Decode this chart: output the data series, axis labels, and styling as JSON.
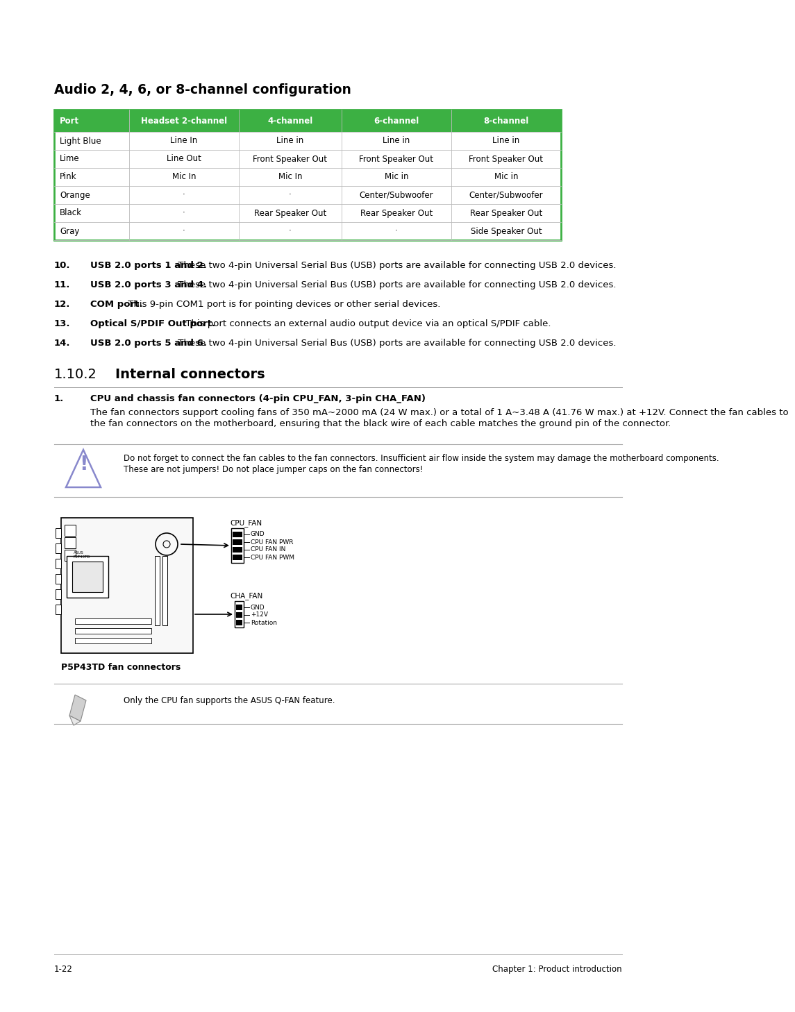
{
  "title": "Audio 2, 4, 6, or 8-channel configuration",
  "table_header_bg": "#3cb043",
  "table_border_color": "#3cb043",
  "table_headers": [
    "Port",
    "Headset 2-channel",
    "4-channel",
    "6-channel",
    "8-channel"
  ],
  "table_rows": [
    [
      "Light Blue",
      "Line In",
      "Line in",
      "Line in",
      "Line in"
    ],
    [
      "Lime",
      "Line Out",
      "Front Speaker Out",
      "Front Speaker Out",
      "Front Speaker Out"
    ],
    [
      "Pink",
      "Mic In",
      "Mic In",
      "Mic in",
      "Mic in"
    ],
    [
      "Orange",
      "·",
      "·",
      "Center/Subwoofer",
      "Center/Subwoofer"
    ],
    [
      "Black",
      "·",
      "Rear Speaker Out",
      "Rear Speaker Out",
      "Rear Speaker Out"
    ],
    [
      "Gray",
      "·",
      "·",
      "·",
      "Side Speaker Out"
    ]
  ],
  "items_10_14": [
    {
      "num": "10.",
      "bold": "USB 2.0 ports 1 and 2.",
      "rest": " These two 4-pin Universal Serial Bus (USB) ports are available for connecting USB 2.0 devices."
    },
    {
      "num": "11.",
      "bold": "USB 2.0 ports 3 and 4.",
      "rest": " These two 4-pin Universal Serial Bus (USB) ports are available for connecting USB 2.0 devices."
    },
    {
      "num": "12.",
      "bold": "COM port.",
      "rest": " This 9-pin COM1 port is for pointing devices or other serial devices."
    },
    {
      "num": "13.",
      "bold": "Optical S/PDIF Out port.",
      "rest": " This port connects an external audio output device via an optical S/PDIF cable."
    },
    {
      "num": "14.",
      "bold": "USB 2.0 ports 5 and 6.",
      "rest": " These two 4-pin Universal Serial Bus (USB) ports are available for connecting USB 2.0 devices."
    }
  ],
  "section_num": "1.10.2",
  "section_title": "Internal connectors",
  "item1_bold": "CPU and chassis fan connectors (4-pin CPU_FAN, 3-pin CHA_FAN)",
  "item1_body": "The fan connectors support cooling fans of 350 mA~2000 mA (24 W max.) or a total of 1 A~3.48 A (41.76 W max.) at +12V. Connect the fan cables to the fan connectors on the motherboard, ensuring that the black wire of each cable matches the ground pin of the connector.",
  "caution_text": "Do not forget to connect the fan cables to the fan connectors. Insufficient air flow inside the system may damage the motherboard components. These are not jumpers! Do not place jumper caps on the fan connectors!",
  "cpu_fan_labels": [
    "GND",
    "CPU FAN PWR",
    "CPU FAN IN",
    "CPU FAN PWM"
  ],
  "cha_fan_labels": [
    "GND",
    "+12V",
    "Rotation"
  ],
  "diagram_caption": "P5P43TD fan connectors",
  "note_text": "Only the CPU fan supports the ASUS Q-FAN feature.",
  "footer_left": "1-22",
  "footer_right": "Chapter 1: Product introduction"
}
